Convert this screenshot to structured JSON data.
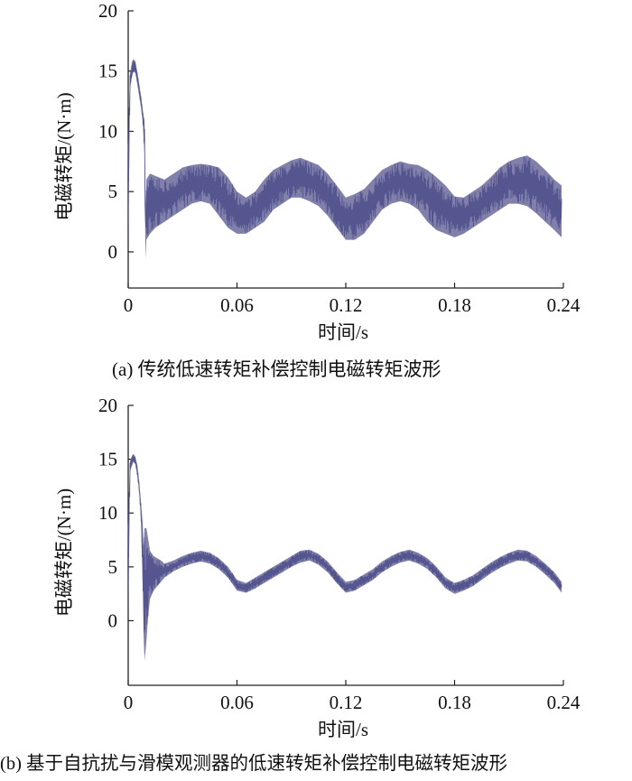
{
  "chart_data": [
    {
      "type": "line",
      "panel": "a",
      "caption": "(a) 传统低速转矩补偿控制电磁转矩波形",
      "xlabel": "时间/s",
      "ylabel": "电磁转矩/(N·m)",
      "xlim": [
        0,
        0.24
      ],
      "ylim": [
        -3,
        20
      ],
      "xticks": [
        0,
        0.06,
        0.12,
        0.18,
        0.24
      ],
      "xtick_labels": [
        "0",
        "0.06",
        "0.12",
        "0.18",
        "0.24"
      ],
      "yticks": [
        0,
        5,
        10,
        15,
        20
      ],
      "ytick_labels": [
        "0",
        "5",
        "10",
        "15",
        "20"
      ],
      "color": "#55558f",
      "series": [
        {
          "band": "envelope",
          "x": [
            0,
            0.001,
            0.002,
            0.003,
            0.004,
            0.005,
            0.007,
            0.008,
            0.009,
            0.0095,
            0.01,
            0.012,
            0.015,
            0.02,
            0.025,
            0.03,
            0.035,
            0.04,
            0.045,
            0.05,
            0.055,
            0.06,
            0.065,
            0.07,
            0.075,
            0.08,
            0.085,
            0.09,
            0.095,
            0.1,
            0.105,
            0.11,
            0.115,
            0.12,
            0.125,
            0.13,
            0.135,
            0.14,
            0.145,
            0.15,
            0.155,
            0.16,
            0.165,
            0.17,
            0.175,
            0.18,
            0.185,
            0.19,
            0.195,
            0.2,
            0.205,
            0.21,
            0.215,
            0.22,
            0.225,
            0.23,
            0.235,
            0.239
          ],
          "upper": [
            9,
            14.8,
            15.7,
            16.0,
            15.8,
            15.0,
            13.0,
            11.8,
            10.8,
            4.0,
            6.0,
            6.5,
            6.3,
            6.0,
            6.5,
            7.0,
            7.2,
            7.3,
            7.2,
            7.0,
            6.2,
            5.0,
            4.5,
            5.0,
            6.0,
            6.8,
            7.2,
            7.6,
            7.8,
            7.5,
            7.2,
            6.5,
            5.5,
            4.5,
            4.8,
            5.2,
            6.0,
            6.8,
            7.2,
            7.5,
            7.3,
            7.2,
            6.8,
            6.2,
            5.5,
            4.6,
            4.5,
            5.0,
            5.5,
            6.2,
            7.0,
            7.5,
            7.8,
            8.0,
            7.5,
            6.8,
            6.0,
            5.5
          ],
          "lower": [
            0,
            13.5,
            14.5,
            15.0,
            14.8,
            14.0,
            12.0,
            10.8,
            8.0,
            -0.6,
            1.0,
            1.5,
            2.0,
            2.5,
            3.0,
            3.5,
            4.0,
            4.2,
            4.0,
            3.0,
            2.0,
            1.5,
            1.5,
            2.0,
            2.5,
            3.5,
            4.0,
            4.5,
            4.5,
            4.2,
            3.8,
            3.0,
            2.0,
            1.0,
            1.0,
            1.5,
            2.5,
            3.5,
            4.0,
            4.2,
            4.0,
            3.5,
            2.5,
            1.8,
            1.5,
            1.2,
            1.5,
            2.0,
            2.5,
            3.0,
            3.5,
            4.0,
            4.0,
            3.8,
            3.2,
            2.5,
            1.8,
            1.2
          ]
        }
      ]
    },
    {
      "type": "line",
      "panel": "b",
      "caption": "(b) 基于自抗扰与滑模观测器的低速转矩补偿控制电磁转矩波形",
      "xlabel": "时间/s",
      "ylabel": "电磁转矩/(N·m)",
      "xlim": [
        0,
        0.24
      ],
      "ylim": [
        -6,
        20
      ],
      "xticks": [
        0,
        0.06,
        0.12,
        0.18,
        0.24
      ],
      "xtick_labels": [
        "0",
        "0.06",
        "0.12",
        "0.18",
        "0.24"
      ],
      "yticks": [
        0,
        5,
        10,
        15,
        20
      ],
      "ytick_labels": [
        "0",
        "5",
        "10",
        "15",
        "20"
      ],
      "color": "#55558f",
      "series": [
        {
          "band": "envelope",
          "x": [
            0,
            0.001,
            0.002,
            0.003,
            0.004,
            0.005,
            0.006,
            0.007,
            0.008,
            0.0085,
            0.009,
            0.01,
            0.011,
            0.012,
            0.014,
            0.016,
            0.018,
            0.02,
            0.025,
            0.03,
            0.035,
            0.04,
            0.045,
            0.05,
            0.055,
            0.06,
            0.065,
            0.07,
            0.075,
            0.08,
            0.085,
            0.09,
            0.095,
            0.1,
            0.105,
            0.11,
            0.115,
            0.12,
            0.125,
            0.13,
            0.135,
            0.14,
            0.145,
            0.15,
            0.155,
            0.16,
            0.165,
            0.17,
            0.175,
            0.18,
            0.185,
            0.19,
            0.195,
            0.2,
            0.205,
            0.21,
            0.215,
            0.22,
            0.225,
            0.23,
            0.235,
            0.239
          ],
          "upper": [
            9,
            14.8,
            15.3,
            15.5,
            15.2,
            14.5,
            13.0,
            11.0,
            9.0,
            7.0,
            8.6,
            8.6,
            7.6,
            6.5,
            6.0,
            5.8,
            5.6,
            5.3,
            5.6,
            6.0,
            6.3,
            6.5,
            6.3,
            5.8,
            5.0,
            3.8,
            3.5,
            4.0,
            4.5,
            5.0,
            5.5,
            6.0,
            6.5,
            6.6,
            6.2,
            5.5,
            4.5,
            3.6,
            3.8,
            4.3,
            4.8,
            5.5,
            6.0,
            6.4,
            6.6,
            6.3,
            5.8,
            5.0,
            4.0,
            3.5,
            3.8,
            4.2,
            4.8,
            5.4,
            5.9,
            6.3,
            6.6,
            6.5,
            6.0,
            5.3,
            4.5,
            3.6
          ],
          "lower": [
            0,
            13.8,
            14.4,
            14.8,
            14.5,
            13.5,
            12.0,
            9.5,
            3.0,
            -1.5,
            -3.7,
            -2.0,
            0.5,
            2.0,
            2.8,
            3.2,
            3.6,
            4.0,
            4.6,
            5.0,
            5.3,
            5.5,
            5.3,
            4.8,
            4.0,
            2.8,
            2.6,
            3.0,
            3.5,
            4.0,
            4.5,
            5.0,
            5.4,
            5.6,
            5.2,
            4.5,
            3.5,
            2.6,
            2.8,
            3.3,
            3.8,
            4.5,
            5.0,
            5.4,
            5.6,
            5.3,
            4.8,
            4.0,
            3.0,
            2.5,
            2.8,
            3.2,
            3.8,
            4.4,
            4.9,
            5.3,
            5.6,
            5.5,
            5.0,
            4.3,
            3.5,
            2.6
          ]
        }
      ]
    }
  ]
}
